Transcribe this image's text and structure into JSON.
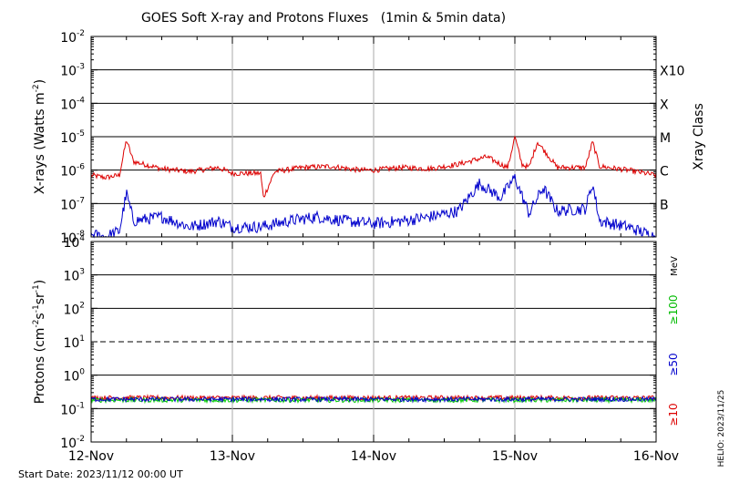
{
  "chart_data": [
    {
      "type": "line",
      "title": "GOES Soft X-ray and Protons Fluxes   (1min & 5min data)",
      "ylabel_main": "X-rays (Watts m",
      "ylabel_sup": "-2",
      "ylabel_close": ")",
      "yscale": "log",
      "ylim": [
        1e-08,
        0.01
      ],
      "y_ticks": [
        {
          "value": 0.01,
          "base": "10",
          "exp": "-2"
        },
        {
          "value": 0.001,
          "base": "10",
          "exp": "-3"
        },
        {
          "value": 0.0001,
          "base": "10",
          "exp": "-4"
        },
        {
          "value": 1e-05,
          "base": "10",
          "exp": "-5"
        },
        {
          "value": 1e-06,
          "base": "10",
          "exp": "-6"
        },
        {
          "value": 1e-07,
          "base": "10",
          "exp": "-7"
        },
        {
          "value": 1e-08,
          "base": "10",
          "exp": "-8"
        }
      ],
      "xlim": [
        "2023-11-12",
        "2023-11-16"
      ],
      "x_tick_labels": [
        "12-Nov",
        "13-Nov",
        "14-Nov",
        "15-Nov",
        "16-Nov"
      ],
      "right_axis_label": "Xray Class",
      "classes": [
        {
          "label": "X10",
          "value": 0.001
        },
        {
          "label": "X",
          "value": 0.0001
        },
        {
          "label": "M",
          "value": 1e-05
        },
        {
          "label": "C",
          "value": 1e-06
        },
        {
          "label": "B",
          "value": 1e-07
        }
      ],
      "series": [
        {
          "color": "#dd0000",
          "x_days": [
            0,
            0.1,
            0.2,
            0.25,
            0.3,
            0.5,
            0.7,
            0.9,
            1.0,
            1.2,
            1.22,
            1.3,
            1.5,
            1.7,
            1.9,
            2.0,
            2.2,
            2.4,
            2.6,
            2.8,
            2.9,
            2.95,
            3.0,
            3.05,
            3.1,
            3.16,
            3.3,
            3.5,
            3.55,
            3.6,
            3.8,
            4.0
          ],
          "values": [
            7e-07,
            6e-07,
            7e-07,
            8e-06,
            1.8e-06,
            1.1e-06,
            9e-07,
            1.2e-06,
            8e-07,
            8e-07,
            1.5e-07,
            9e-07,
            1.2e-06,
            1.3e-06,
            1e-06,
            1e-06,
            1.2e-06,
            1.1e-06,
            1.5e-06,
            2.5e-06,
            1.5e-06,
            1.2e-06,
            1e-05,
            1.5e-06,
            1.2e-06,
            7e-06,
            1.2e-06,
            1.2e-06,
            7e-06,
            1.3e-06,
            1e-06,
            7e-07
          ]
        },
        {
          "color": "#0000cc",
          "x_days": [
            0,
            0.1,
            0.2,
            0.25,
            0.3,
            0.5,
            0.7,
            0.9,
            1.0,
            1.2,
            1.4,
            1.6,
            1.8,
            2.0,
            2.2,
            2.4,
            2.6,
            2.75,
            2.9,
            3.0,
            3.1,
            3.2,
            3.3,
            3.5,
            3.55,
            3.6,
            3.8,
            4.0
          ],
          "values": [
            1.2e-08,
            1e-08,
            1.5e-08,
            2e-07,
            3e-08,
            4e-08,
            2e-08,
            3e-08,
            2e-08,
            2e-08,
            3e-08,
            4e-08,
            3e-08,
            2.5e-08,
            3e-08,
            4e-08,
            6e-08,
            4e-07,
            1.5e-07,
            6e-07,
            5e-08,
            3e-07,
            6e-08,
            7e-08,
            4e-07,
            3e-08,
            2e-08,
            1e-08
          ]
        }
      ]
    },
    {
      "type": "line",
      "ylabel_main": "Protons (cm",
      "ylabel_sup1": "-2",
      "ylabel_mid": "s",
      "ylabel_sup2": "-1",
      "ylabel_mid2": "sr",
      "ylabel_sup3": "-1",
      "ylabel_close": ")",
      "yscale": "log",
      "ylim": [
        0.01,
        10000
      ],
      "y_ticks": [
        {
          "value": 10000,
          "base": "10",
          "exp": "4"
        },
        {
          "value": 1000,
          "base": "10",
          "exp": "3"
        },
        {
          "value": 100,
          "base": "10",
          "exp": "2"
        },
        {
          "value": 10,
          "base": "10",
          "exp": "1"
        },
        {
          "value": 1,
          "base": "10",
          "exp": "0"
        },
        {
          "value": 0.1,
          "base": "10",
          "exp": "-1"
        },
        {
          "value": 0.01,
          "base": "10",
          "exp": "-2"
        }
      ],
      "threshold_line": 10,
      "unit_label": "MeV",
      "energy_labels": [
        {
          "text": "≥100",
          "color": "#00bb00"
        },
        {
          "text": "≥50",
          "color": "#0000cc"
        },
        {
          "text": "≥10",
          "color": "#dd0000"
        }
      ],
      "series": [
        {
          "color": "#dd0000",
          "level": 0.21
        },
        {
          "color": "#00cc00",
          "level": 0.18
        },
        {
          "color": "#0000cc",
          "level": 0.19
        }
      ]
    }
  ],
  "footer": {
    "start_date": "Start Date: 2023/11/12 00:00 UT",
    "stamp": "HELIO: 2023/11/25"
  }
}
